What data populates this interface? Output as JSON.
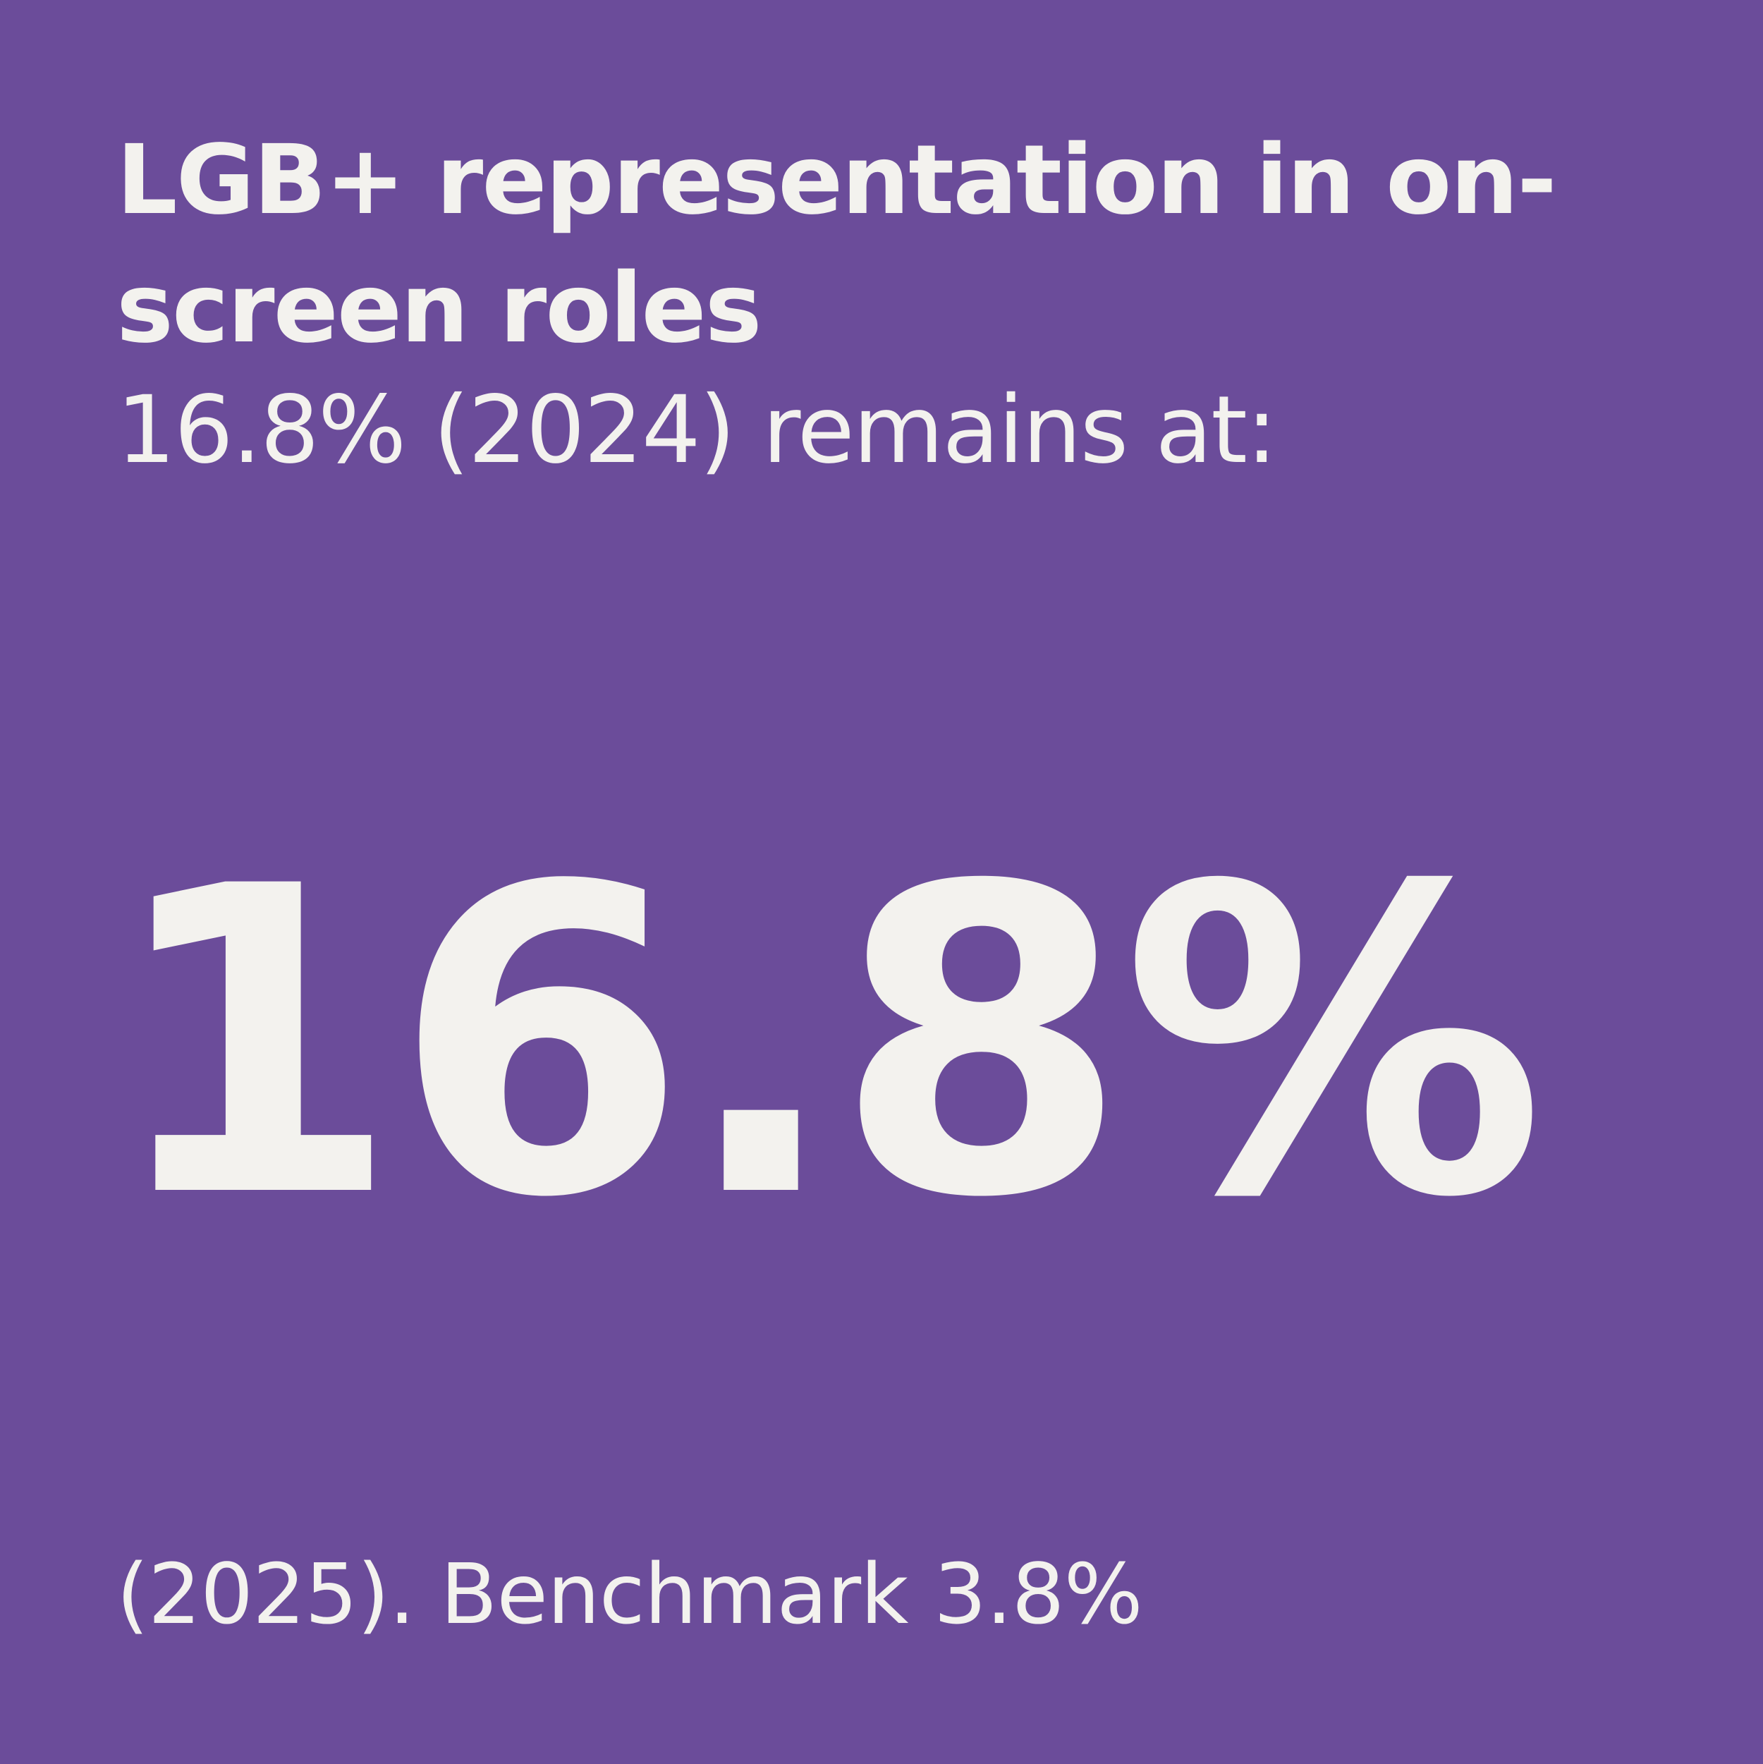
{
  "card": {
    "background_color": "#6b4c9a",
    "text_color": "#f3f2ee",
    "title": "LGB+ representation in on-screen roles",
    "subtitle": "16.8% (2024) remains at:",
    "big_stat": "16.8%",
    "footnote": "(2025). Benchmark 3.8%"
  }
}
